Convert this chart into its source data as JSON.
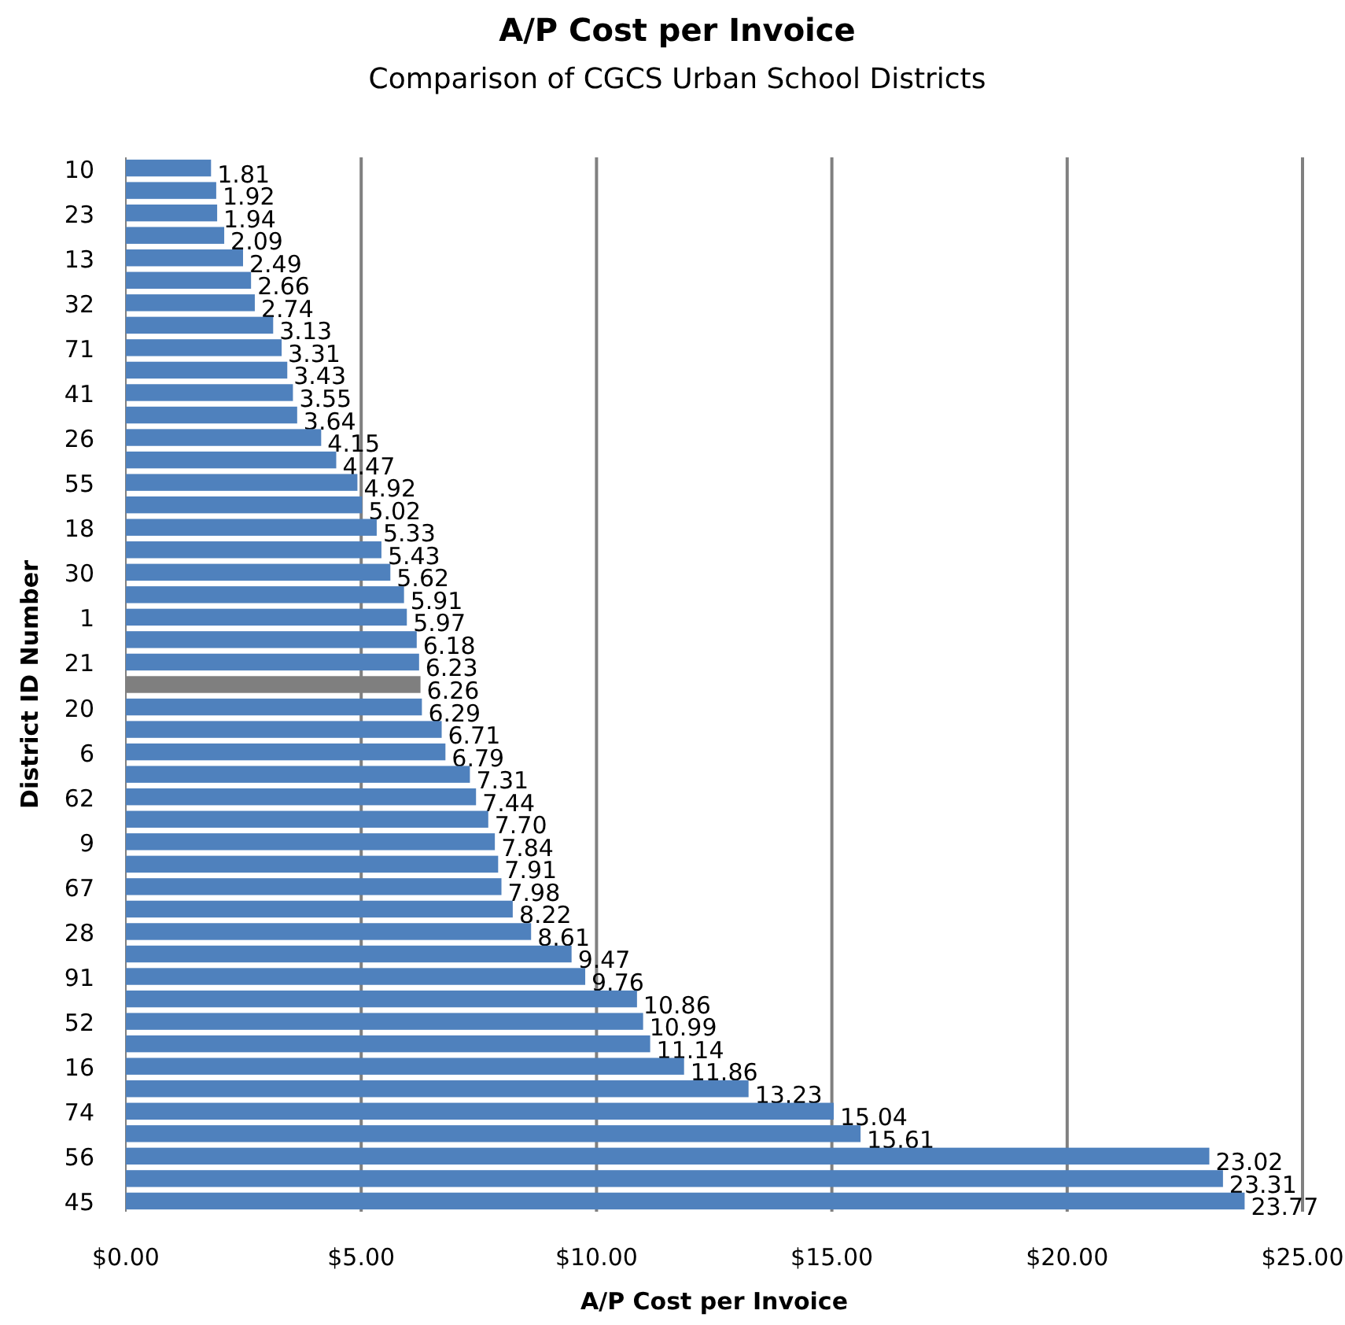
{
  "chart_data": {
    "type": "bar",
    "orientation": "horizontal",
    "title": "A/P Cost per Invoice",
    "subtitle": "Comparison of CGCS Urban School Districts",
    "xlabel": "A/P Cost per Invoice",
    "ylabel": "District ID Number",
    "categories": [
      "10",
      null,
      "23",
      null,
      "13",
      null,
      "32",
      null,
      "71",
      null,
      "41",
      null,
      "26",
      null,
      "55",
      null,
      "18",
      null,
      "30",
      null,
      "1",
      null,
      "21",
      null,
      "20",
      null,
      "6",
      null,
      "62",
      null,
      "9",
      null,
      "67",
      null,
      "28",
      null,
      "91",
      null,
      "52",
      null,
      "16",
      null,
      "74",
      null,
      "56",
      null,
      "45"
    ],
    "values": [
      1.81,
      1.92,
      1.94,
      2.09,
      2.49,
      2.66,
      2.74,
      3.13,
      3.31,
      3.43,
      3.55,
      3.64,
      4.15,
      4.47,
      4.92,
      5.02,
      5.33,
      5.43,
      5.62,
      5.91,
      5.97,
      6.18,
      6.23,
      6.26,
      6.29,
      6.71,
      6.79,
      7.31,
      7.44,
      7.7,
      7.84,
      7.91,
      7.98,
      8.22,
      8.61,
      9.47,
      9.76,
      10.86,
      10.99,
      11.14,
      11.86,
      13.23,
      15.04,
      15.61,
      23.02,
      23.31,
      23.77
    ],
    "value_labels": [
      "1.81",
      "1.92",
      "1.94",
      "2.09",
      "2.49",
      "2.66",
      "2.74",
      "3.13",
      "3.31",
      "3.43",
      "3.55",
      "3.64",
      "4.15",
      "4.47",
      "4.92",
      "5.02",
      "5.33",
      "5.43",
      "5.62",
      "5.91",
      "5.97",
      "6.18",
      "6.23",
      "6.26",
      "6.29",
      "6.71",
      "6.79",
      "7.31",
      "7.44",
      "7.70",
      "7.84",
      "7.91",
      "7.98",
      "8.22",
      "8.61",
      "9.47",
      "9.76",
      "10.86",
      "10.99",
      "11.14",
      "11.86",
      "13.23",
      "15.04",
      "15.61",
      "23.02",
      "23.31",
      "23.77"
    ],
    "colors": [
      "#4f81bd",
      "#4f81bd",
      "#4f81bd",
      "#4f81bd",
      "#4f81bd",
      "#4f81bd",
      "#4f81bd",
      "#4f81bd",
      "#4f81bd",
      "#4f81bd",
      "#4f81bd",
      "#4f81bd",
      "#4f81bd",
      "#4f81bd",
      "#4f81bd",
      "#4f81bd",
      "#4f81bd",
      "#4f81bd",
      "#4f81bd",
      "#4f81bd",
      "#4f81bd",
      "#4f81bd",
      "#4f81bd",
      "#7f7f7f",
      "#4f81bd",
      "#4f81bd",
      "#4f81bd",
      "#4f81bd",
      "#4f81bd",
      "#4f81bd",
      "#4f81bd",
      "#4f81bd",
      "#4f81bd",
      "#4f81bd",
      "#4f81bd",
      "#4f81bd",
      "#4f81bd",
      "#4f81bd",
      "#4f81bd",
      "#4f81bd",
      "#4f81bd",
      "#4f81bd",
      "#4f81bd",
      "#4f81bd",
      "#4f81bd",
      "#4f81bd",
      "#4f81bd"
    ],
    "xlim": [
      0,
      25
    ],
    "xticks": [
      {
        "value": 0,
        "label": "$0.00"
      },
      {
        "value": 5,
        "label": "$5.00"
      },
      {
        "value": 10,
        "label": "$10.00"
      },
      {
        "value": 15,
        "label": "$15.00"
      },
      {
        "value": 20,
        "label": "$20.00"
      },
      {
        "value": 25,
        "label": "$25.00"
      }
    ],
    "grid": "x"
  }
}
